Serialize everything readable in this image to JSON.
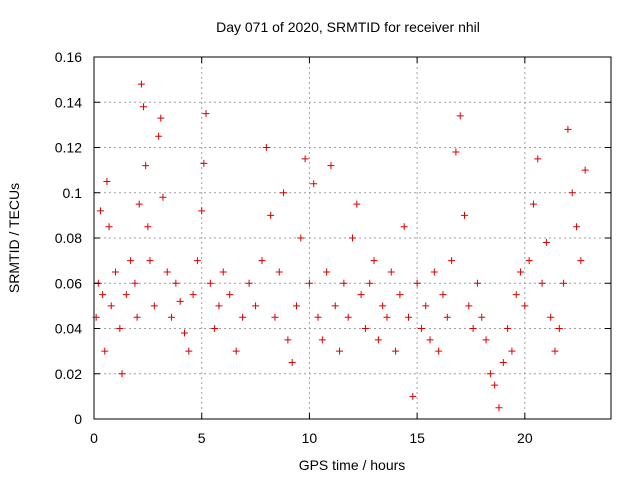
{
  "chart_data": {
    "type": "scatter",
    "title": "Day 071 of 2020, SRMTID for receiver nhil",
    "xlabel": "GPS time / hours",
    "ylabel": "SRMTID / TECUs",
    "xlim": [
      0,
      24
    ],
    "ylim": [
      0,
      0.16
    ],
    "x_ticks": [
      0,
      5,
      10,
      15,
      20
    ],
    "y_ticks": [
      0,
      0.02,
      0.04,
      0.06,
      0.08,
      0.1,
      0.12,
      0.14,
      0.16
    ],
    "x_tick_labels": [
      "0",
      "5",
      "10",
      "15",
      "20"
    ],
    "y_tick_labels": [
      "0",
      "0.02",
      "0.04",
      "0.06",
      "0.08",
      "0.1",
      "0.12",
      "0.14",
      "0.16"
    ],
    "grid": true,
    "marker": "plus",
    "marker_color": "#dd0000",
    "series": [
      {
        "points": [
          [
            0.1,
            0.045
          ],
          [
            0.2,
            0.06
          ],
          [
            0.3,
            0.092
          ],
          [
            0.4,
            0.055
          ],
          [
            0.5,
            0.03
          ],
          [
            0.6,
            0.105
          ],
          [
            0.7,
            0.085
          ],
          [
            0.8,
            0.05
          ],
          [
            1.0,
            0.065
          ],
          [
            1.2,
            0.04
          ],
          [
            1.3,
            0.02
          ],
          [
            1.5,
            0.055
          ],
          [
            1.7,
            0.07
          ],
          [
            1.9,
            0.06
          ],
          [
            2.0,
            0.045
          ],
          [
            2.1,
            0.095
          ],
          [
            2.2,
            0.148
          ],
          [
            2.3,
            0.138
          ],
          [
            2.4,
            0.112
          ],
          [
            2.5,
            0.085
          ],
          [
            2.6,
            0.07
          ],
          [
            2.8,
            0.05
          ],
          [
            3.0,
            0.125
          ],
          [
            3.1,
            0.133
          ],
          [
            3.2,
            0.098
          ],
          [
            3.4,
            0.065
          ],
          [
            3.6,
            0.045
          ],
          [
            3.8,
            0.06
          ],
          [
            4.0,
            0.052
          ],
          [
            4.2,
            0.038
          ],
          [
            4.4,
            0.03
          ],
          [
            4.6,
            0.055
          ],
          [
            4.8,
            0.07
          ],
          [
            5.0,
            0.092
          ],
          [
            5.1,
            0.113
          ],
          [
            5.2,
            0.135
          ],
          [
            5.4,
            0.06
          ],
          [
            5.6,
            0.04
          ],
          [
            5.8,
            0.05
          ],
          [
            6.0,
            0.065
          ],
          [
            6.3,
            0.055
          ],
          [
            6.6,
            0.03
          ],
          [
            6.9,
            0.045
          ],
          [
            7.2,
            0.06
          ],
          [
            7.5,
            0.05
          ],
          [
            7.8,
            0.07
          ],
          [
            8.0,
            0.12
          ],
          [
            8.2,
            0.09
          ],
          [
            8.4,
            0.045
          ],
          [
            8.6,
            0.065
          ],
          [
            8.8,
            0.1
          ],
          [
            9.0,
            0.035
          ],
          [
            9.2,
            0.025
          ],
          [
            9.4,
            0.05
          ],
          [
            9.6,
            0.08
          ],
          [
            9.8,
            0.115
          ],
          [
            10.0,
            0.06
          ],
          [
            10.2,
            0.104
          ],
          [
            10.4,
            0.045
          ],
          [
            10.6,
            0.035
          ],
          [
            10.8,
            0.065
          ],
          [
            11.0,
            0.112
          ],
          [
            11.2,
            0.05
          ],
          [
            11.4,
            0.03
          ],
          [
            11.6,
            0.06
          ],
          [
            11.8,
            0.045
          ],
          [
            12.0,
            0.08
          ],
          [
            12.2,
            0.095
          ],
          [
            12.4,
            0.055
          ],
          [
            12.6,
            0.04
          ],
          [
            12.8,
            0.06
          ],
          [
            13.0,
            0.07
          ],
          [
            13.2,
            0.035
          ],
          [
            13.4,
            0.05
          ],
          [
            13.6,
            0.045
          ],
          [
            13.8,
            0.065
          ],
          [
            14.0,
            0.03
          ],
          [
            14.2,
            0.055
          ],
          [
            14.4,
            0.085
          ],
          [
            14.6,
            0.045
          ],
          [
            14.8,
            0.01
          ],
          [
            15.0,
            0.06
          ],
          [
            15.2,
            0.04
          ],
          [
            15.4,
            0.05
          ],
          [
            15.6,
            0.035
          ],
          [
            15.8,
            0.065
          ],
          [
            16.0,
            0.03
          ],
          [
            16.2,
            0.055
          ],
          [
            16.4,
            0.045
          ],
          [
            16.6,
            0.07
          ],
          [
            16.8,
            0.118
          ],
          [
            17.0,
            0.134
          ],
          [
            17.2,
            0.09
          ],
          [
            17.4,
            0.05
          ],
          [
            17.6,
            0.04
          ],
          [
            17.8,
            0.06
          ],
          [
            18.0,
            0.045
          ],
          [
            18.2,
            0.035
          ],
          [
            18.4,
            0.02
          ],
          [
            18.6,
            0.015
          ],
          [
            18.8,
            0.005
          ],
          [
            19.0,
            0.025
          ],
          [
            19.2,
            0.04
          ],
          [
            19.4,
            0.03
          ],
          [
            19.6,
            0.055
          ],
          [
            19.8,
            0.065
          ],
          [
            20.0,
            0.05
          ],
          [
            20.2,
            0.07
          ],
          [
            20.4,
            0.095
          ],
          [
            20.6,
            0.115
          ],
          [
            20.8,
            0.06
          ],
          [
            21.0,
            0.078
          ],
          [
            21.2,
            0.045
          ],
          [
            21.4,
            0.03
          ],
          [
            21.6,
            0.04
          ],
          [
            21.8,
            0.06
          ],
          [
            22.0,
            0.128
          ],
          [
            22.2,
            0.1
          ],
          [
            22.4,
            0.085
          ],
          [
            22.6,
            0.07
          ],
          [
            22.8,
            0.11
          ]
        ]
      }
    ]
  }
}
